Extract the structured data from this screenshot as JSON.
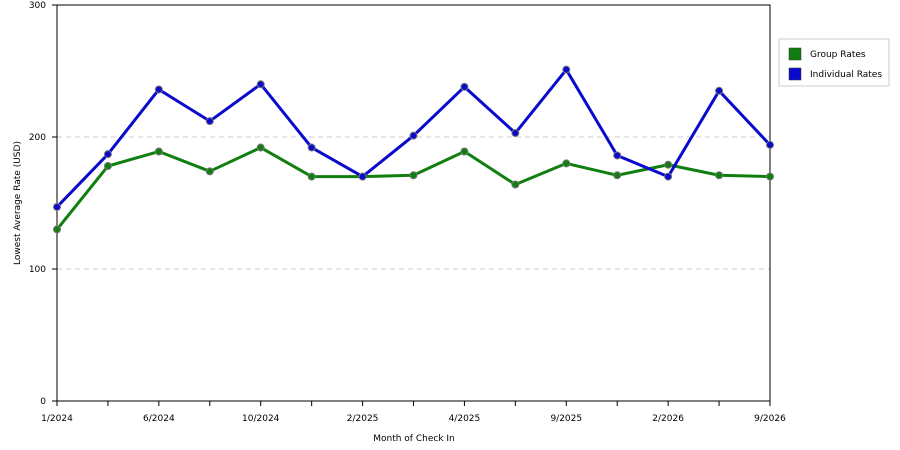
{
  "chart_data": {
    "type": "line",
    "x_label": "Month of Check In",
    "y_label": "Lowest Average Rate (USD)",
    "categories": [
      "1/2024",
      null,
      "6/2024",
      null,
      "10/2024",
      null,
      "2/2025",
      null,
      "4/2025",
      null,
      "9/2025",
      null,
      "2/2026",
      null,
      "9/2026"
    ],
    "series": [
      {
        "name": "Group Rates",
        "color": "#107f10",
        "values": [
          130,
          178,
          189,
          174,
          192,
          170,
          170,
          171,
          189,
          164,
          180,
          171,
          179,
          171,
          170
        ]
      },
      {
        "name": "Individual Rates",
        "color": "#0a0acc",
        "values": [
          147,
          187,
          236,
          212,
          240,
          192,
          170,
          201,
          238,
          203,
          251,
          186,
          170,
          235,
          194
        ]
      }
    ],
    "ylim": [
      0,
      300
    ],
    "yticks": [
      0,
      100,
      200,
      300
    ],
    "grid": true
  }
}
